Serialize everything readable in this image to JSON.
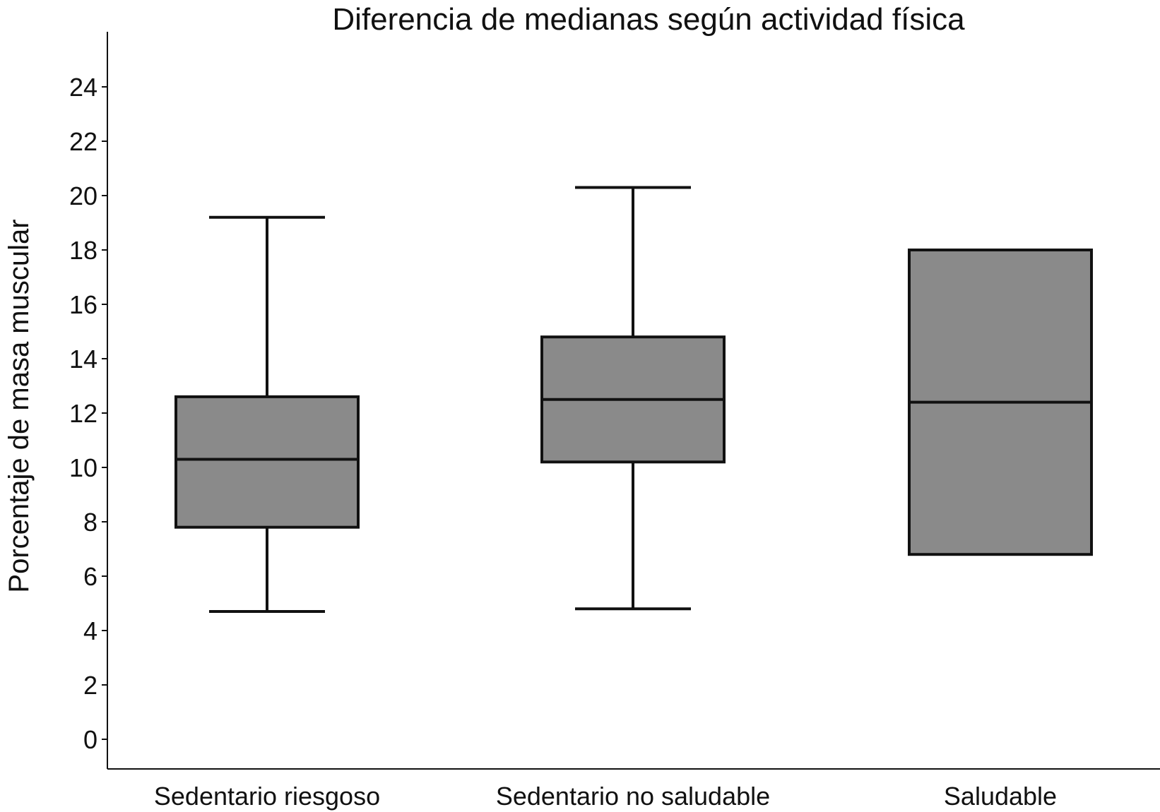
{
  "chart_data": {
    "type": "box",
    "title": "Diferencia de medianas según actividad física",
    "xlabel": "",
    "ylabel": "Porcentaje de masa muscular",
    "ylim": [
      -1,
      27
    ],
    "yticks": [
      0,
      2,
      4,
      6,
      8,
      10,
      12,
      14,
      16,
      18,
      20,
      22,
      24
    ],
    "grid": false,
    "box_color": "#8a8a8a",
    "line_color": "#111111",
    "categories": [
      "Sedentario riesgoso",
      "Sedentario no saludable",
      "Saludable"
    ],
    "boxes": [
      {
        "whisker_low": 4.7,
        "q1": 7.8,
        "median": 10.3,
        "q3": 12.6,
        "whisker_high": 19.2
      },
      {
        "whisker_low": 4.8,
        "q1": 10.2,
        "median": 12.5,
        "q3": 14.8,
        "whisker_high": 20.3
      },
      {
        "whisker_low": null,
        "q1": 6.8,
        "median": 12.4,
        "q3": 18.0,
        "whisker_high": null
      }
    ]
  }
}
